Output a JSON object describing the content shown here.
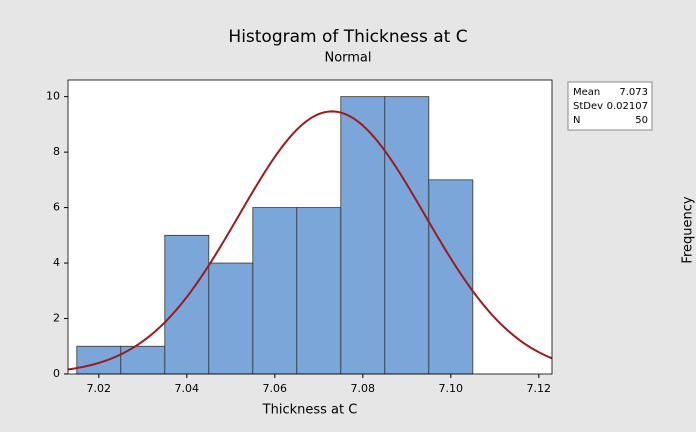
{
  "chart_data": {
    "type": "histogram",
    "title": "Histogram of Thickness at C",
    "subtitle": "Normal",
    "xlabel": "Thickness at C",
    "ylabel": "Frequency",
    "bins": [
      7.015,
      7.025,
      7.035,
      7.045,
      7.055,
      7.065,
      7.075,
      7.085,
      7.095,
      7.105
    ],
    "values": [
      1,
      1,
      5,
      4,
      6,
      6,
      10,
      10,
      7
    ],
    "color": "#7ba6d9",
    "curve_color": "#9b1c1c",
    "xlim": [
      7.013,
      7.123
    ],
    "xticks": [
      7.02,
      7.04,
      7.06,
      7.08,
      {
        "value": 7.1,
        "label": "7.10"
      },
      7.12
    ],
    "ylim": [
      0,
      10.6
    ],
    "yticks": [
      0,
      2,
      4,
      6,
      8,
      10
    ],
    "stats": [
      {
        "label": "Mean",
        "value": 7.073
      },
      {
        "label": "StDev",
        "value": 0.02107
      },
      {
        "label": "N",
        "value": 50
      }
    ]
  }
}
